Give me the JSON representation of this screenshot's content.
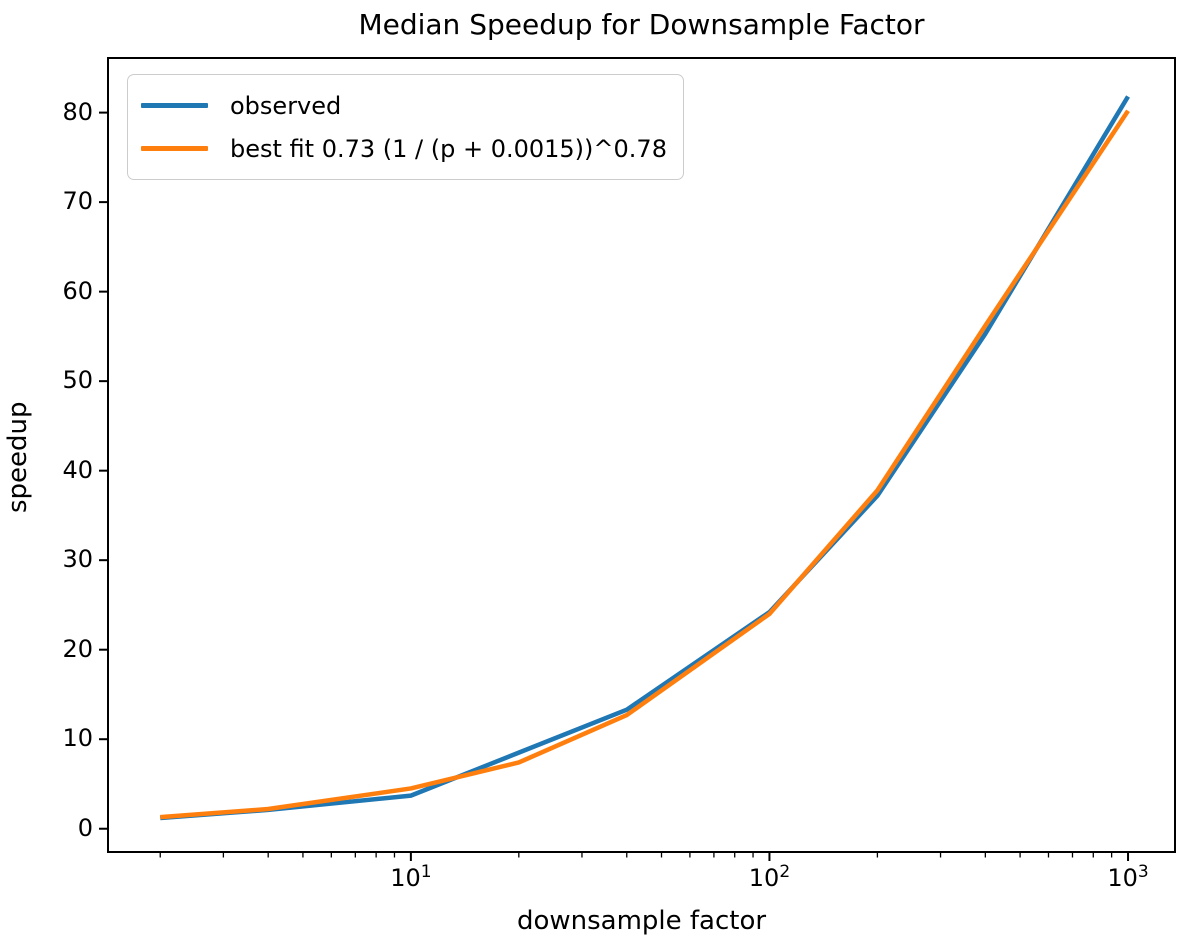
{
  "figure": {
    "title": "Median Speedup for Downsample Factor",
    "xlabel": "downsample factor",
    "ylabel": "speedup"
  },
  "legend": {
    "position": "upper left",
    "entries": [
      {
        "label": "observed",
        "color": "#1f77b4"
      },
      {
        "label": "best fit 0.73 (1 / (p + 0.0015))^0.78",
        "color": "#ff7f0e"
      }
    ]
  },
  "chart_data": {
    "type": "line",
    "title": "Median Speedup for Downsample Factor",
    "xlabel": "downsample factor",
    "ylabel": "speedup",
    "xscale": "log",
    "yscale": "linear",
    "grid": false,
    "x": [
      2,
      4,
      10,
      20,
      40,
      100,
      200,
      400,
      1000
    ],
    "series": [
      {
        "name": "observed",
        "color": "#1f77b4",
        "values": [
          1.2,
          2.1,
          3.7,
          8.5,
          13.3,
          24.2,
          37.2,
          55.3,
          81.8
        ]
      },
      {
        "name": "best fit 0.73 (1 / (p + 0.0015))^0.78",
        "color": "#ff7f0e",
        "values": [
          1.3,
          2.2,
          4.5,
          7.4,
          12.7,
          24.0,
          37.8,
          56.2,
          80.2
        ]
      }
    ],
    "xlim": [
      1.43,
      1352
    ],
    "ylim": [
      -2.6,
      86.1
    ],
    "xticks": [
      {
        "value": 10,
        "base": "10",
        "exp": "1"
      },
      {
        "value": 100,
        "base": "10",
        "exp": "2"
      },
      {
        "value": 1000,
        "base": "10",
        "exp": "3"
      }
    ],
    "yticks": [
      0,
      10,
      20,
      30,
      40,
      50,
      60,
      70,
      80
    ],
    "legend_position": "upper left"
  },
  "colors": {
    "axis": "#000000",
    "background": "#ffffff",
    "legend_border": "#cccccc"
  }
}
